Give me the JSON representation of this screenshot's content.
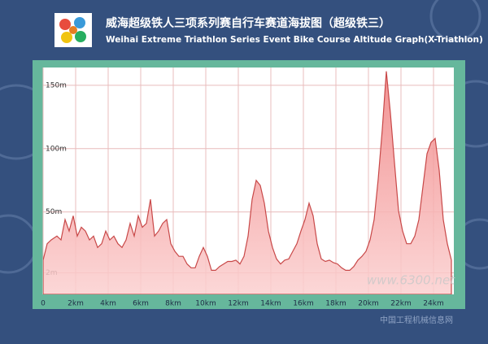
{
  "chart_data": {
    "type": "area",
    "title": "威海超级铁人三项系列赛自行车赛道海拔图（超级铁三）",
    "subtitle": "Weihai Extreme Triathlon Series Event Bike Course Altitude Graph(X-Triathlon)",
    "x": [
      0,
      0.25,
      0.5,
      0.85,
      1.1,
      1.35,
      1.6,
      1.85,
      2.1,
      2.35,
      2.6,
      2.85,
      3.1,
      3.35,
      3.6,
      3.85,
      4.1,
      4.35,
      4.6,
      4.85,
      5.1,
      5.35,
      5.6,
      5.85,
      6.1,
      6.35,
      6.6,
      6.85,
      7.1,
      7.35,
      7.6,
      7.85,
      8.1,
      8.35,
      8.6,
      8.85,
      9.1,
      9.35,
      9.6,
      9.85,
      10.1,
      10.35,
      10.6,
      10.85,
      11.1,
      11.35,
      11.6,
      11.85,
      12.1,
      12.35,
      12.6,
      12.85,
      13.1,
      13.35,
      13.6,
      13.85,
      14.1,
      14.35,
      14.6,
      14.85,
      15.1,
      15.35,
      15.6,
      15.85,
      16.1,
      16.35,
      16.6,
      16.85,
      17.1,
      17.35,
      17.6,
      17.85,
      18.1,
      18.35,
      18.6,
      18.85,
      19.1,
      19.35,
      19.6,
      19.85,
      20.1,
      20.35,
      20.6,
      20.85,
      21.1,
      21.35,
      21.6,
      21.85,
      22.1,
      22.35,
      22.6,
      22.85,
      23.1,
      23.35,
      23.6,
      23.85,
      24.1,
      24.35,
      24.6,
      24.85,
      25.1
    ],
    "values": [
      12,
      25,
      28,
      31,
      28,
      44,
      35,
      47,
      31,
      38,
      35,
      28,
      31,
      22,
      25,
      35,
      28,
      31,
      25,
      22,
      28,
      41,
      31,
      47,
      38,
      41,
      60,
      31,
      35,
      41,
      44,
      25,
      19,
      15,
      15,
      9,
      6,
      6,
      15,
      22,
      15,
      4,
      4,
      7,
      9,
      11,
      11,
      12,
      9,
      15,
      31,
      60,
      75,
      71,
      57,
      35,
      22,
      13,
      9,
      12,
      13,
      19,
      25,
      35,
      44,
      57,
      47,
      25,
      13,
      11,
      12,
      10,
      9,
      6,
      4,
      4,
      7,
      12,
      15,
      19,
      28,
      44,
      76,
      115,
      161,
      128,
      89,
      51,
      35,
      25,
      25,
      31,
      44,
      70,
      96,
      105,
      108,
      83,
      44,
      25,
      12
    ],
    "color": "#c84848",
    "xlim": [
      0,
      25.25
    ],
    "ylim": [
      -15,
      164
    ],
    "xticks": [
      0,
      {
        "value": 2,
        "label": "2km"
      },
      {
        "value": 4,
        "label": "4km"
      },
      {
        "value": 6,
        "label": "6km"
      },
      {
        "value": 8,
        "label": "8km"
      },
      {
        "value": 10,
        "label": "10km"
      },
      {
        "value": 12,
        "label": "12km"
      },
      {
        "value": 14,
        "label": "14km"
      },
      {
        "value": 16,
        "label": "16km"
      },
      {
        "value": 18,
        "label": "18km"
      },
      {
        "value": 20,
        "label": "20km"
      },
      {
        "value": 22,
        "label": "22km"
      },
      {
        "value": 24,
        "label": "24km"
      }
    ],
    "yticks": [
      {
        "value": 2,
        "label": "2m"
      },
      {
        "value": 50,
        "label": "50m"
      },
      {
        "value": 100,
        "label": "100m"
      },
      {
        "value": 150,
        "label": "150m"
      }
    ],
    "grid": true
  },
  "watermark": [
    "www.6300.net",
    "中国工程机械信息网"
  ]
}
